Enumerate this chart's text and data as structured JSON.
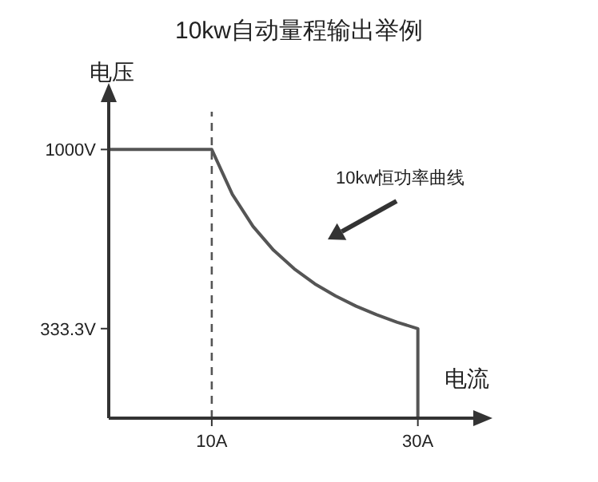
{
  "chart_data": {
    "type": "line",
    "title": "10kw自动量程输出举例",
    "xlabel": "电流",
    "ylabel": "电压",
    "xlim": [
      0,
      36
    ],
    "ylim": [
      0,
      1200
    ],
    "xticks": [
      {
        "value": 10,
        "label": "10A"
      },
      {
        "value": 30,
        "label": "30A"
      }
    ],
    "yticks": [
      {
        "value": 333.3,
        "label": "333.3V"
      },
      {
        "value": 1000,
        "label": "1000V"
      }
    ],
    "series": [
      {
        "color": "#555555",
        "x": [
          0,
          10,
          12,
          14,
          16,
          18,
          20,
          22,
          24,
          26,
          28,
          30,
          30
        ],
        "values": [
          1000,
          1000,
          833,
          714,
          625,
          556,
          500,
          455,
          417,
          385,
          357,
          333.3,
          0
        ]
      }
    ],
    "ref_lines": [
      {
        "axis": "x",
        "value": 10,
        "line_style": "dashed",
        "color": "#555555"
      }
    ],
    "annotations": [
      "10kw恒功率曲线"
    ],
    "grid": false,
    "marker": "none",
    "line_style": "solid"
  }
}
